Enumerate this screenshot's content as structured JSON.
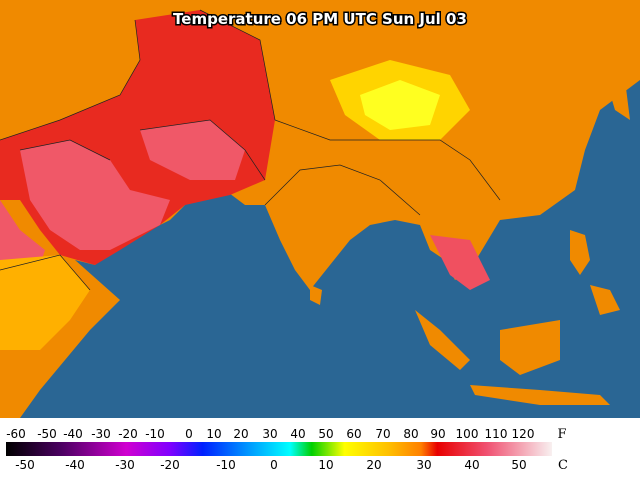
{
  "title": "Temperature 06 PM UTC Sun Jul 03",
  "legend": {
    "fahrenheit_unit": "F",
    "fahrenheit_labels": [
      -60,
      -50,
      -40,
      -30,
      -20,
      -10,
      0,
      10,
      20,
      30,
      40,
      50,
      60,
      70,
      80,
      90,
      100,
      110,
      120
    ],
    "celsius_unit": "C",
    "celsius_labels": [
      -50,
      -40,
      -30,
      -20,
      -10,
      0,
      10,
      20,
      30,
      40,
      50
    ]
  }
}
